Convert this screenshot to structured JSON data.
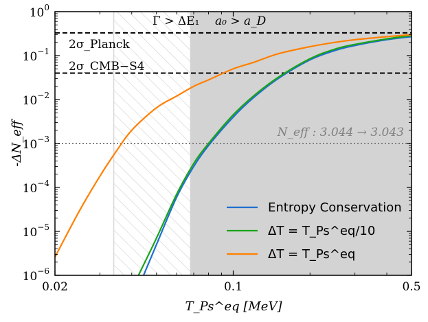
{
  "chart_data": {
    "type": "line",
    "title": "",
    "xlabel": "T_Ps^eq [MeV]",
    "ylabel": "-ΔN_eff",
    "xscale": "log",
    "yscale": "log",
    "xlim": [
      0.02,
      0.5
    ],
    "ylim": [
      1e-06,
      1
    ],
    "x_ticks": [
      {
        "value": 0.02,
        "label": "0.02"
      },
      {
        "value": 0.1,
        "label": "0.1"
      },
      {
        "value": 0.5,
        "label": "0.5"
      }
    ],
    "y_ticks": [
      {
        "value": 1e-06,
        "base": "10",
        "exp": "−6"
      },
      {
        "value": 1e-05,
        "base": "10",
        "exp": "−5"
      },
      {
        "value": 0.0001,
        "base": "10",
        "exp": "−4"
      },
      {
        "value": 0.001,
        "base": "10",
        "exp": "−3"
      },
      {
        "value": 0.01,
        "base": "10",
        "exp": "−2"
      },
      {
        "value": 0.1,
        "base": "10",
        "exp": "−1"
      },
      {
        "value": 1,
        "base": "10",
        "exp": "0"
      }
    ],
    "regions": [
      {
        "type": "hatched",
        "x_from": 0.034,
        "x_to": 0.068,
        "label": "Γ > ΔE₁"
      },
      {
        "type": "shaded",
        "x_from": 0.068,
        "x_to": 0.5,
        "color": "#d3d3d3",
        "label": "a₀ > a_D"
      }
    ],
    "hlines": [
      {
        "y": 0.33,
        "style": "dashed",
        "color": "#000000",
        "label": "2σ_Planck"
      },
      {
        "y": 0.04,
        "style": "dashed",
        "color": "#000000",
        "label": "2σ_CMB−S4"
      },
      {
        "y": 0.001,
        "style": "dotted",
        "color": "#808080",
        "label": "N_eff : 3.044 → 3.043"
      }
    ],
    "series": [
      {
        "name": "Entropy Conservation",
        "color": "#1f6fd0",
        "x": [
          0.0445,
          0.05,
          0.06,
          0.07,
          0.08,
          0.1,
          0.12,
          0.15,
          0.2,
          0.25,
          0.3,
          0.4,
          0.5
        ],
        "y": [
          1e-06,
          5e-06,
          6e-05,
          0.0003,
          0.0009,
          0.004,
          0.011,
          0.03,
          0.08,
          0.13,
          0.17,
          0.23,
          0.27
        ]
      },
      {
        "name": "ΔT = T_Ps^eq/10",
        "color": "#1aa31a",
        "x": [
          0.0425,
          0.05,
          0.06,
          0.07,
          0.08,
          0.1,
          0.12,
          0.15,
          0.2,
          0.25,
          0.3,
          0.4,
          0.5
        ],
        "y": [
          1e-06,
          7e-06,
          7e-05,
          0.00035,
          0.001,
          0.0045,
          0.012,
          0.032,
          0.085,
          0.14,
          0.18,
          0.24,
          0.285
        ]
      },
      {
        "name": "ΔT = T_Ps^eq",
        "color": "#ff8000",
        "x": [
          0.02,
          0.025,
          0.03,
          0.035,
          0.04,
          0.05,
          0.06,
          0.07,
          0.08,
          0.1,
          0.12,
          0.15,
          0.2,
          0.25,
          0.3,
          0.4,
          0.5
        ],
        "y": [
          2.6e-06,
          3e-05,
          0.00018,
          0.0007,
          0.002,
          0.0065,
          0.012,
          0.02,
          0.028,
          0.05,
          0.07,
          0.11,
          0.16,
          0.2,
          0.23,
          0.27,
          0.3
        ]
      }
    ],
    "legend": {
      "position": "bottom-right"
    }
  }
}
